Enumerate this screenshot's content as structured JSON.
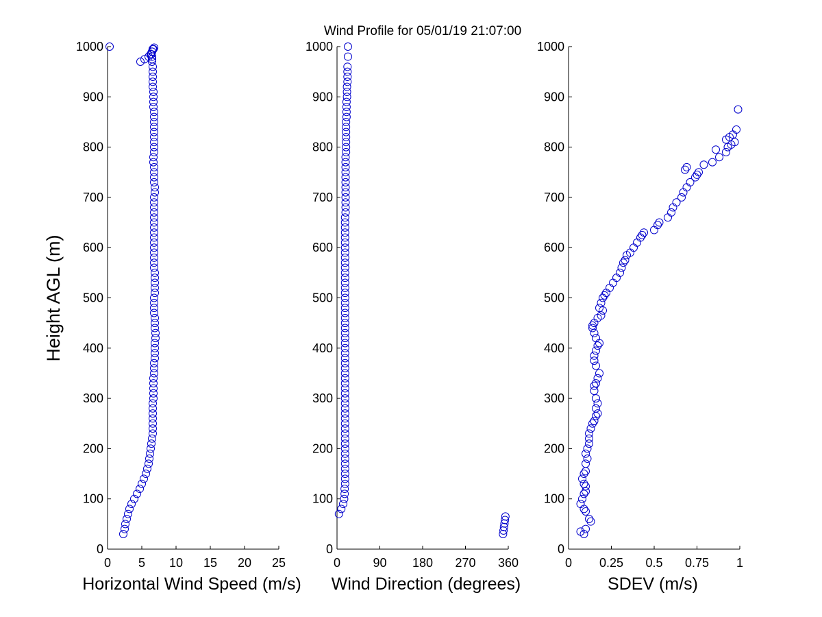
{
  "title": "Wind Profile for  05/01/19 21:07:00",
  "colors": {
    "marker": "#0000cc",
    "axis": "#000000",
    "background": "#ffffff"
  },
  "chart_data": [
    {
      "type": "scatter",
      "xlabel": "Horizontal Wind Speed (m/s)",
      "ylabel": "Height AGL (m)",
      "xlim": [
        0,
        25
      ],
      "ylim": [
        0,
        1000
      ],
      "xticks": [
        0,
        5,
        10,
        15,
        20,
        25
      ],
      "xtick_labels": [
        "0",
        "5",
        "10",
        "15",
        "20",
        "25"
      ],
      "yticks": [
        0,
        100,
        200,
        300,
        400,
        500,
        600,
        700,
        800,
        900,
        1000
      ],
      "ytick_labels": [
        "0",
        "100",
        "200",
        "300",
        "400",
        "500",
        "600",
        "700",
        "800",
        "900",
        "1000"
      ],
      "grid": false,
      "x": [
        2.3,
        2.5,
        2.6,
        2.8,
        3.0,
        3.2,
        3.5,
        3.9,
        4.3,
        4.7,
        5.0,
        5.3,
        5.6,
        5.8,
        6.0,
        6.1,
        6.2,
        6.3,
        6.4,
        6.5,
        6.6,
        6.6,
        6.6,
        6.6,
        6.6,
        6.6,
        6.6,
        6.7,
        6.7,
        6.7,
        6.7,
        6.7,
        6.8,
        6.8,
        6.8,
        6.9,
        6.9,
        6.9,
        6.9,
        7.0,
        7.0,
        6.9,
        6.9,
        6.9,
        6.8,
        6.8,
        6.8,
        6.8,
        6.9,
        6.9,
        6.9,
        6.9,
        6.9,
        6.8,
        6.8,
        6.8,
        6.8,
        6.8,
        6.8,
        6.8,
        6.8,
        6.8,
        6.8,
        6.8,
        6.8,
        6.8,
        6.8,
        6.8,
        6.9,
        6.9,
        6.8,
        6.8,
        6.8,
        6.8,
        6.7,
        6.7,
        6.8,
        6.8,
        6.8,
        6.8,
        6.8,
        6.8,
        6.8,
        6.8,
        6.8,
        6.7,
        6.7,
        6.7,
        6.7,
        6.6,
        6.6,
        6.6,
        6.6,
        6.6,
        6.5,
        6.5,
        6.5,
        6.4,
        6.5,
        6.6,
        6.8,
        6.7,
        6.5,
        6.3,
        6.0,
        5.4,
        4.8,
        0.3
      ],
      "y": [
        30,
        40,
        50,
        60,
        70,
        80,
        90,
        100,
        110,
        120,
        130,
        140,
        150,
        160,
        170,
        180,
        190,
        200,
        210,
        220,
        230,
        240,
        250,
        260,
        270,
        280,
        290,
        300,
        310,
        320,
        330,
        340,
        350,
        360,
        370,
        380,
        390,
        400,
        410,
        420,
        430,
        440,
        450,
        460,
        470,
        480,
        490,
        500,
        510,
        520,
        530,
        540,
        550,
        560,
        570,
        580,
        590,
        600,
        610,
        620,
        630,
        640,
        650,
        660,
        670,
        680,
        690,
        700,
        710,
        720,
        730,
        740,
        750,
        760,
        770,
        780,
        790,
        800,
        810,
        820,
        830,
        840,
        850,
        860,
        870,
        880,
        890,
        900,
        910,
        920,
        930,
        940,
        950,
        960,
        970,
        975,
        980,
        985,
        990,
        995,
        998,
        995,
        990,
        985,
        980,
        975,
        970,
        1000
      ]
    },
    {
      "type": "scatter",
      "xlabel": "Wind Direction (degrees)",
      "ylabel": "",
      "xlim": [
        0,
        360
      ],
      "ylim": [
        0,
        1000
      ],
      "xticks": [
        0,
        90,
        180,
        270,
        360
      ],
      "xtick_labels": [
        "0",
        "90",
        "180",
        "270",
        "360"
      ],
      "yticks": [
        0,
        100,
        200,
        300,
        400,
        500,
        600,
        700,
        800,
        900,
        1000
      ],
      "ytick_labels": [
        "0",
        "100",
        "200",
        "300",
        "400",
        "500",
        "600",
        "700",
        "800",
        "900",
        "1000"
      ],
      "grid": false,
      "x": [
        349,
        350,
        351,
        352,
        353,
        354,
        4,
        9,
        13,
        15,
        16,
        16,
        17,
        17,
        17,
        17,
        17,
        17,
        17,
        17,
        17,
        17,
        17,
        17,
        17,
        17,
        17,
        17,
        17,
        17,
        17,
        17,
        17,
        17,
        17,
        17,
        17,
        17,
        17,
        17,
        17,
        17,
        17,
        17,
        17,
        17,
        17,
        17,
        17,
        17,
        17,
        17,
        17,
        17,
        17,
        17,
        17,
        17,
        17,
        17,
        17,
        17,
        17,
        17,
        17,
        17,
        18,
        18,
        18,
        18,
        18,
        18,
        18,
        18,
        18,
        18,
        18,
        18,
        19,
        19,
        19,
        19,
        19,
        19,
        19,
        20,
        20,
        20,
        20,
        21,
        21,
        21,
        22,
        22,
        22,
        22,
        23,
        23
      ],
      "y": [
        30,
        37,
        44,
        51,
        58,
        65,
        70,
        80,
        90,
        100,
        110,
        120,
        130,
        140,
        150,
        160,
        170,
        180,
        190,
        200,
        210,
        220,
        230,
        240,
        250,
        260,
        270,
        280,
        290,
        300,
        310,
        320,
        330,
        340,
        350,
        360,
        370,
        380,
        390,
        400,
        410,
        420,
        430,
        440,
        450,
        460,
        470,
        480,
        490,
        500,
        510,
        520,
        530,
        540,
        550,
        560,
        570,
        580,
        590,
        600,
        610,
        620,
        630,
        640,
        650,
        660,
        670,
        680,
        690,
        700,
        710,
        720,
        730,
        740,
        750,
        760,
        770,
        780,
        790,
        800,
        810,
        820,
        830,
        840,
        850,
        860,
        870,
        880,
        890,
        900,
        910,
        920,
        930,
        940,
        950,
        960,
        980,
        1000
      ]
    },
    {
      "type": "scatter",
      "xlabel": "SDEV  (m/s)",
      "ylabel": "",
      "xlim": [
        0,
        1
      ],
      "ylim": [
        0,
        1000
      ],
      "xticks": [
        0,
        0.25,
        0.5,
        0.75,
        1
      ],
      "xtick_labels": [
        "0",
        "0.25",
        "0.5",
        "0.75",
        "1"
      ],
      "yticks": [
        0,
        100,
        200,
        300,
        400,
        500,
        600,
        700,
        800,
        900,
        1000
      ],
      "ytick_labels": [
        "0",
        "100",
        "200",
        "300",
        "400",
        "500",
        "600",
        "700",
        "800",
        "900",
        "1000"
      ],
      "grid": false,
      "x": [
        0.09,
        0.07,
        0.1,
        0.13,
        0.12,
        0.1,
        0.09,
        0.07,
        0.08,
        0.09,
        0.1,
        0.1,
        0.09,
        0.08,
        0.09,
        0.1,
        0.1,
        0.11,
        0.1,
        0.11,
        0.12,
        0.12,
        0.12,
        0.13,
        0.14,
        0.15,
        0.16,
        0.17,
        0.16,
        0.17,
        0.16,
        0.15,
        0.15,
        0.16,
        0.17,
        0.18,
        0.16,
        0.15,
        0.15,
        0.16,
        0.17,
        0.18,
        0.16,
        0.15,
        0.14,
        0.14,
        0.15,
        0.17,
        0.19,
        0.2,
        0.18,
        0.19,
        0.2,
        0.21,
        0.22,
        0.24,
        0.26,
        0.28,
        0.3,
        0.31,
        0.32,
        0.33,
        0.34,
        0.36,
        0.38,
        0.4,
        0.42,
        0.43,
        0.44,
        0.5,
        0.52,
        0.53,
        0.58,
        0.6,
        0.61,
        0.63,
        0.66,
        0.67,
        0.69,
        0.71,
        0.74,
        0.75,
        0.76,
        0.68,
        0.69,
        0.79,
        0.84,
        0.88,
        0.92,
        0.86,
        0.93,
        0.95,
        0.97,
        0.92,
        0.94,
        0.96,
        0.98,
        0.99
      ],
      "y": [
        30,
        35,
        40,
        55,
        60,
        75,
        80,
        90,
        100,
        110,
        115,
        125,
        130,
        140,
        150,
        155,
        170,
        180,
        190,
        200,
        210,
        220,
        230,
        240,
        250,
        255,
        265,
        270,
        280,
        290,
        300,
        315,
        325,
        330,
        340,
        350,
        365,
        375,
        385,
        395,
        405,
        410,
        420,
        430,
        440,
        445,
        450,
        460,
        465,
        475,
        480,
        490,
        500,
        505,
        510,
        520,
        530,
        540,
        550,
        560,
        570,
        575,
        585,
        590,
        600,
        610,
        620,
        625,
        630,
        635,
        645,
        650,
        660,
        670,
        680,
        690,
        700,
        710,
        720,
        730,
        740,
        745,
        750,
        755,
        760,
        765,
        770,
        780,
        790,
        795,
        800,
        805,
        810,
        815,
        820,
        825,
        835,
        875
      ]
    }
  ]
}
